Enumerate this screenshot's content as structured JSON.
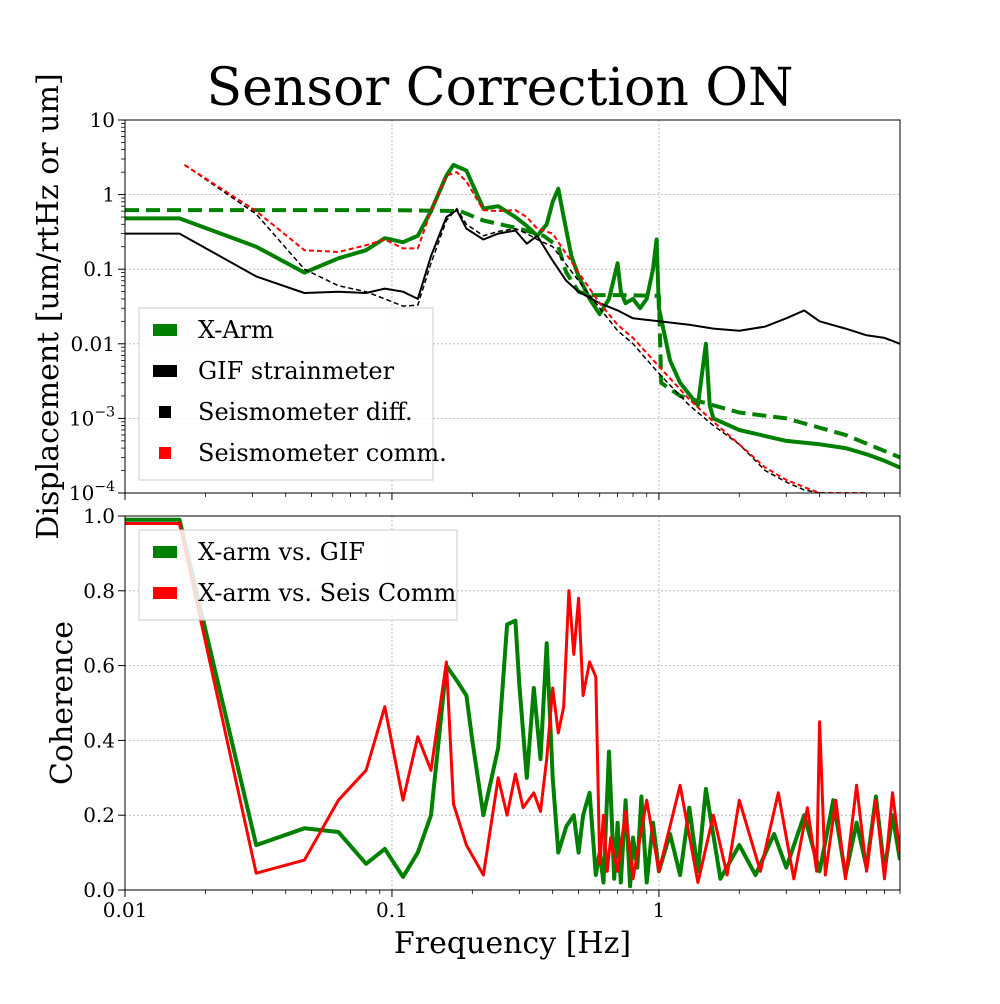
{
  "title": "Sensor Correction ON",
  "colors": {
    "green": "#008000",
    "black": "#000000",
    "red": "#ff0000",
    "grid": "#b0b0b0"
  },
  "chart_data": [
    {
      "type": "line",
      "ylabel": "Displacement [um/rtHz or um]",
      "xscale": "log",
      "yscale": "log",
      "xlim": [
        0.01,
        8
      ],
      "ylim": [
        0.0001,
        10
      ],
      "ytick_labels": [
        "10",
        "1",
        "0.1",
        "0.01",
        "10^-3",
        "10^-4"
      ],
      "ytick_values": [
        10,
        1,
        0.1,
        0.01,
        0.001,
        0.0001
      ],
      "grid": true,
      "legend_position": "lower-left",
      "series": [
        {
          "name": "X-Arm",
          "color": "#008000",
          "style": "solid",
          "width": 4,
          "x": [
            0.01,
            0.016,
            0.031,
            0.047,
            0.063,
            0.08,
            0.094,
            0.11,
            0.125,
            0.14,
            0.16,
            0.17,
            0.19,
            0.22,
            0.25,
            0.29,
            0.32,
            0.35,
            0.38,
            0.4,
            0.42,
            0.44,
            0.47,
            0.5,
            0.55,
            0.6,
            0.65,
            0.7,
            0.72,
            0.75,
            0.8,
            0.85,
            0.9,
            0.95,
            0.98,
            1.0,
            1.1,
            1.2,
            1.4,
            1.5,
            1.55,
            1.6,
            2.0,
            3.0,
            4.0,
            5.0,
            6.0,
            7.0,
            8.0
          ],
          "y": [
            0.48,
            0.48,
            0.2,
            0.09,
            0.14,
            0.18,
            0.26,
            0.23,
            0.28,
            0.6,
            1.8,
            2.5,
            2.1,
            0.65,
            0.7,
            0.5,
            0.38,
            0.28,
            0.4,
            0.8,
            1.2,
            0.5,
            0.15,
            0.08,
            0.04,
            0.025,
            0.04,
            0.12,
            0.05,
            0.035,
            0.04,
            0.03,
            0.04,
            0.1,
            0.25,
            0.03,
            0.006,
            0.003,
            0.0015,
            0.01,
            0.0015,
            0.001,
            0.0007,
            0.0005,
            0.00045,
            0.0004,
            0.00033,
            0.00027,
            0.00022
          ]
        },
        {
          "name": "",
          "color": "#008000",
          "style": "dashed",
          "width": 4,
          "x": [
            0.01,
            0.03,
            0.1,
            0.18,
            0.22,
            0.3,
            0.37,
            0.42,
            0.45,
            0.5,
            0.55,
            0.6,
            0.7,
            1.0,
            1.02,
            1.2,
            1.6,
            2.0,
            3.0,
            5.0,
            8.0
          ],
          "y": [
            0.62,
            0.62,
            0.62,
            0.6,
            0.45,
            0.35,
            0.28,
            0.2,
            0.09,
            0.05,
            0.045,
            0.045,
            0.045,
            0.044,
            0.003,
            0.002,
            0.0015,
            0.0012,
            0.001,
            0.0006,
            0.0003
          ]
        },
        {
          "name": "GIF strainmeter",
          "color": "#000000",
          "style": "solid",
          "width": 2,
          "x": [
            0.01,
            0.016,
            0.031,
            0.047,
            0.063,
            0.08,
            0.094,
            0.11,
            0.125,
            0.14,
            0.16,
            0.175,
            0.19,
            0.22,
            0.25,
            0.29,
            0.32,
            0.35,
            0.4,
            0.45,
            0.5,
            0.6,
            0.7,
            0.8,
            1.0,
            1.3,
            1.6,
            2.0,
            2.5,
            3.0,
            3.5,
            4.0,
            5.0,
            6.0,
            7.0,
            8.0
          ],
          "y": [
            0.3,
            0.3,
            0.08,
            0.048,
            0.05,
            0.048,
            0.055,
            0.05,
            0.04,
            0.15,
            0.5,
            0.62,
            0.35,
            0.25,
            0.3,
            0.33,
            0.22,
            0.28,
            0.13,
            0.07,
            0.05,
            0.035,
            0.028,
            0.022,
            0.02,
            0.018,
            0.016,
            0.015,
            0.017,
            0.022,
            0.028,
            0.02,
            0.016,
            0.013,
            0.012,
            0.01
          ]
        },
        {
          "name": "Seismometer diff.",
          "color": "#000000",
          "style": "dashed",
          "width": 1.5,
          "x": [
            0.0167,
            0.031,
            0.047,
            0.063,
            0.08,
            0.094,
            0.11,
            0.125,
            0.14,
            0.16,
            0.175,
            0.19,
            0.22,
            0.25,
            0.29,
            0.32,
            0.35,
            0.4,
            0.5,
            0.6,
            0.7,
            0.8,
            1.0,
            1.3,
            1.6,
            2.0,
            2.5,
            3.0,
            3.5,
            4.0
          ],
          "y": [
            2.5,
            0.55,
            0.1,
            0.06,
            0.05,
            0.04,
            0.032,
            0.033,
            0.12,
            0.45,
            0.65,
            0.4,
            0.28,
            0.32,
            0.35,
            0.3,
            0.25,
            0.2,
            0.07,
            0.03,
            0.015,
            0.01,
            0.004,
            0.0015,
            0.0008,
            0.00045,
            0.0002,
            0.00014,
            0.00011,
            0.0001
          ]
        },
        {
          "name": "Seismometer comm.",
          "color": "#ff0000",
          "style": "dashed",
          "width": 2,
          "x": [
            0.0167,
            0.031,
            0.047,
            0.063,
            0.08,
            0.094,
            0.11,
            0.125,
            0.14,
            0.16,
            0.175,
            0.19,
            0.22,
            0.25,
            0.29,
            0.32,
            0.35,
            0.4,
            0.5,
            0.6,
            0.7,
            0.8,
            1.0,
            1.3,
            1.6,
            2.0,
            2.5,
            3.0,
            3.5,
            4.0,
            5.0,
            6.0
          ],
          "y": [
            2.5,
            0.6,
            0.18,
            0.17,
            0.21,
            0.25,
            0.19,
            0.19,
            0.6,
            1.8,
            2.0,
            1.5,
            0.62,
            0.6,
            0.62,
            0.5,
            0.35,
            0.3,
            0.09,
            0.035,
            0.018,
            0.012,
            0.005,
            0.0018,
            0.0009,
            0.00045,
            0.00022,
            0.00015,
            0.00012,
            0.0001,
            0.0001,
            0.0001
          ]
        }
      ]
    },
    {
      "type": "line",
      "xlabel": "Frequency [Hz]",
      "ylabel": "Coherence",
      "xscale": "log",
      "yscale": "linear",
      "xlim": [
        0.01,
        8
      ],
      "ylim": [
        0.0,
        1.0
      ],
      "xtick_labels": [
        "0.01",
        "0.1",
        "1"
      ],
      "xtick_values": [
        0.01,
        0.1,
        1
      ],
      "ytick_labels": [
        "1.0",
        "0.8",
        "0.6",
        "0.4",
        "0.2",
        "0.0"
      ],
      "ytick_values": [
        1.0,
        0.8,
        0.6,
        0.4,
        0.2,
        0.0
      ],
      "grid": true,
      "legend_position": "upper-left",
      "series": [
        {
          "name": "X-arm vs. GIF",
          "color": "#008000",
          "style": "solid",
          "width": 4,
          "x": [
            0.01,
            0.016,
            0.031,
            0.047,
            0.063,
            0.08,
            0.094,
            0.11,
            0.125,
            0.14,
            0.16,
            0.175,
            0.19,
            0.2,
            0.22,
            0.25,
            0.27,
            0.29,
            0.3,
            0.32,
            0.34,
            0.36,
            0.38,
            0.4,
            0.42,
            0.45,
            0.48,
            0.5,
            0.52,
            0.55,
            0.58,
            0.6,
            0.62,
            0.65,
            0.68,
            0.7,
            0.72,
            0.75,
            0.78,
            0.8,
            0.83,
            0.86,
            0.9,
            0.95,
            1.0,
            1.1,
            1.2,
            1.3,
            1.4,
            1.5,
            1.7,
            2.0,
            2.3,
            2.7,
            3.0,
            3.5,
            4.0,
            4.5,
            5.0,
            5.5,
            6.0,
            6.5,
            7.0,
            7.5,
            8.0
          ],
          "y": [
            0.99,
            0.99,
            0.12,
            0.165,
            0.155,
            0.07,
            0.11,
            0.035,
            0.1,
            0.2,
            0.6,
            0.56,
            0.52,
            0.4,
            0.2,
            0.38,
            0.71,
            0.72,
            0.55,
            0.3,
            0.54,
            0.35,
            0.66,
            0.3,
            0.1,
            0.17,
            0.2,
            0.1,
            0.2,
            0.26,
            0.04,
            0.1,
            0.02,
            0.37,
            0.03,
            0.18,
            0.02,
            0.24,
            0.01,
            0.14,
            0.06,
            0.25,
            0.02,
            0.18,
            0.05,
            0.15,
            0.04,
            0.22,
            0.05,
            0.27,
            0.03,
            0.12,
            0.04,
            0.15,
            0.06,
            0.2,
            0.05,
            0.24,
            0.04,
            0.18,
            0.06,
            0.25,
            0.05,
            0.2,
            0.08
          ]
        },
        {
          "name": "X-arm vs. Seis Comm",
          "color": "#ff0000",
          "style": "solid",
          "width": 3,
          "x": [
            0.01,
            0.016,
            0.031,
            0.047,
            0.063,
            0.08,
            0.094,
            0.11,
            0.125,
            0.14,
            0.16,
            0.17,
            0.19,
            0.22,
            0.25,
            0.27,
            0.29,
            0.31,
            0.34,
            0.36,
            0.38,
            0.4,
            0.42,
            0.44,
            0.46,
            0.48,
            0.5,
            0.52,
            0.55,
            0.58,
            0.6,
            0.62,
            0.64,
            0.66,
            0.7,
            0.75,
            0.8,
            0.9,
            1.0,
            1.2,
            1.4,
            1.6,
            1.8,
            2.0,
            2.4,
            2.8,
            3.2,
            3.6,
            3.9,
            4.0,
            4.2,
            4.6,
            5.0,
            5.5,
            6.0,
            6.5,
            7.0,
            7.5,
            8.0
          ],
          "y": [
            0.98,
            0.98,
            0.045,
            0.08,
            0.24,
            0.32,
            0.49,
            0.24,
            0.41,
            0.32,
            0.61,
            0.23,
            0.12,
            0.04,
            0.3,
            0.2,
            0.31,
            0.22,
            0.26,
            0.21,
            0.35,
            0.54,
            0.42,
            0.49,
            0.8,
            0.63,
            0.78,
            0.52,
            0.61,
            0.57,
            0.07,
            0.2,
            0.05,
            0.14,
            0.05,
            0.21,
            0.03,
            0.24,
            0.05,
            0.28,
            0.02,
            0.2,
            0.04,
            0.24,
            0.05,
            0.26,
            0.03,
            0.22,
            0.05,
            0.45,
            0.04,
            0.24,
            0.03,
            0.28,
            0.05,
            0.24,
            0.03,
            0.26,
            0.1
          ]
        }
      ]
    }
  ]
}
